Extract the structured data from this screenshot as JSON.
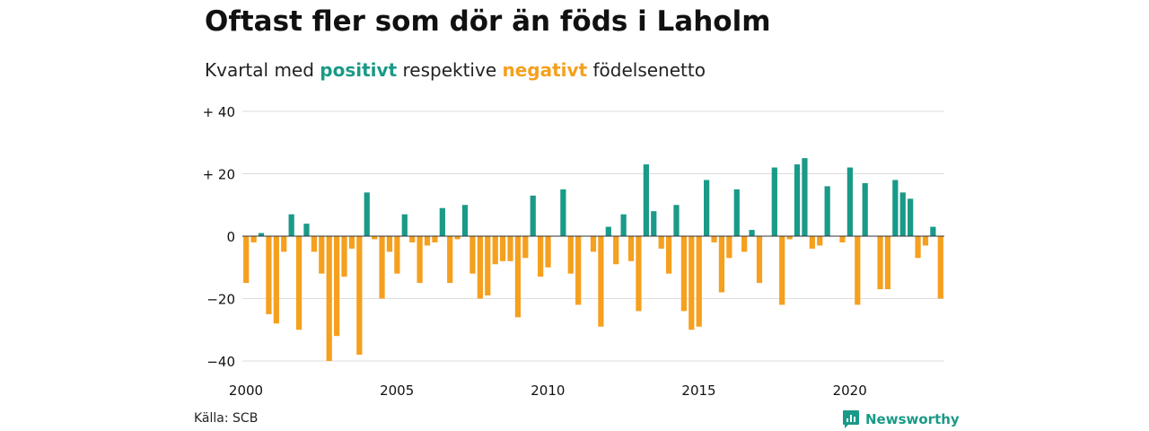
{
  "title": "Oftast fler som dör än föds i Laholm",
  "subtitle": {
    "prefix": "Kvartal med",
    "positive_word": "positivt",
    "middle": "respektive",
    "negative_word": "negativt",
    "suffix": "födelsenetto"
  },
  "source": "Källa: SCB",
  "brand": {
    "name": "Newsworthy",
    "icon": "newsworthy-logo-icon",
    "color": "#1a9a88"
  },
  "colors": {
    "positive": "#1a9a88",
    "negative": "#f5a01e",
    "grid": "#dddddd",
    "zero": "#333333"
  },
  "chart_data": {
    "type": "bar",
    "title": "Oftast fler som dör än föds i Laholm",
    "subtitle": "Kvartal med positivt respektive negativt födelsenetto",
    "xlabel": "",
    "ylabel": "",
    "x_start": 2000,
    "x_end": 2023.25,
    "ylim": [
      -45,
      40
    ],
    "yticks": [
      40,
      20,
      0,
      -20,
      -40
    ],
    "ytick_labels": [
      "+ 40",
      "+ 20",
      "0",
      "−20",
      "−40"
    ],
    "xticks": [
      2000,
      2005,
      2010,
      2015,
      2020
    ],
    "xtick_labels": [
      "2000",
      "2005",
      "2010",
      "2015",
      "2020"
    ],
    "grid": true,
    "legend": "none",
    "series": [
      {
        "quarters": [
          "2000 Q1",
          "2000 Q2",
          "2000 Q3",
          "2000 Q4",
          "2001 Q1",
          "2001 Q2",
          "2001 Q3",
          "2001 Q4",
          "2002 Q1",
          "2002 Q2",
          "2002 Q3",
          "2002 Q4",
          "2003 Q1",
          "2003 Q2",
          "2003 Q3",
          "2003 Q4",
          "2004 Q1",
          "2004 Q2",
          "2004 Q3",
          "2004 Q4",
          "2005 Q1",
          "2005 Q2",
          "2005 Q3",
          "2005 Q4",
          "2006 Q1",
          "2006 Q2",
          "2006 Q3",
          "2006 Q4",
          "2007 Q1",
          "2007 Q2",
          "2007 Q3",
          "2007 Q4",
          "2008 Q1",
          "2008 Q2",
          "2008 Q3",
          "2008 Q4",
          "2009 Q1",
          "2009 Q2",
          "2009 Q3",
          "2009 Q4",
          "2010 Q1",
          "2010 Q2",
          "2010 Q3",
          "2010 Q4",
          "2011 Q1",
          "2011 Q2",
          "2011 Q3",
          "2011 Q4",
          "2012 Q1",
          "2012 Q2",
          "2012 Q3",
          "2012 Q4",
          "2013 Q1",
          "2013 Q2",
          "2013 Q3",
          "2013 Q4",
          "2014 Q1",
          "2014 Q2",
          "2014 Q3",
          "2014 Q4",
          "2015 Q1",
          "2015 Q2",
          "2015 Q3",
          "2015 Q4",
          "2016 Q1",
          "2016 Q2",
          "2016 Q3",
          "2016 Q4",
          "2017 Q1",
          "2017 Q2",
          "2017 Q3",
          "2017 Q4",
          "2018 Q1",
          "2018 Q2",
          "2018 Q3",
          "2018 Q4",
          "2019 Q1",
          "2019 Q2",
          "2019 Q3",
          "2019 Q4",
          "2020 Q1",
          "2020 Q2",
          "2020 Q3",
          "2020 Q4",
          "2021 Q1",
          "2021 Q2",
          "2021 Q3",
          "2021 Q4",
          "2022 Q1",
          "2022 Q2",
          "2022 Q3",
          "2022 Q4",
          "2023 Q1"
        ],
        "values": [
          -15,
          -2,
          1,
          -25,
          -28,
          -5,
          7,
          -30,
          4,
          -5,
          -12,
          -40,
          -32,
          -13,
          -4,
          -38,
          14,
          -1,
          -20,
          -5,
          -12,
          7,
          -2,
          -15,
          -3,
          -2,
          9,
          -15,
          -1,
          10,
          -12,
          -20,
          -19,
          -9,
          -8,
          -8,
          -26,
          -7,
          13,
          -13,
          -10,
          0,
          15,
          -12,
          -22,
          0,
          -5,
          -29,
          3,
          -9,
          7,
          -8,
          -24,
          23,
          8,
          -4,
          -12,
          10,
          -24,
          -30,
          -29,
          18,
          -2,
          -18,
          -7,
          15,
          -5,
          2,
          -15,
          0,
          22,
          -22,
          -1,
          23,
          25,
          -4,
          -3,
          16,
          0,
          -2,
          22,
          -22,
          17,
          0,
          -17,
          -17,
          18,
          14,
          12,
          -7,
          -3,
          3,
          -20
        ]
      }
    ]
  }
}
